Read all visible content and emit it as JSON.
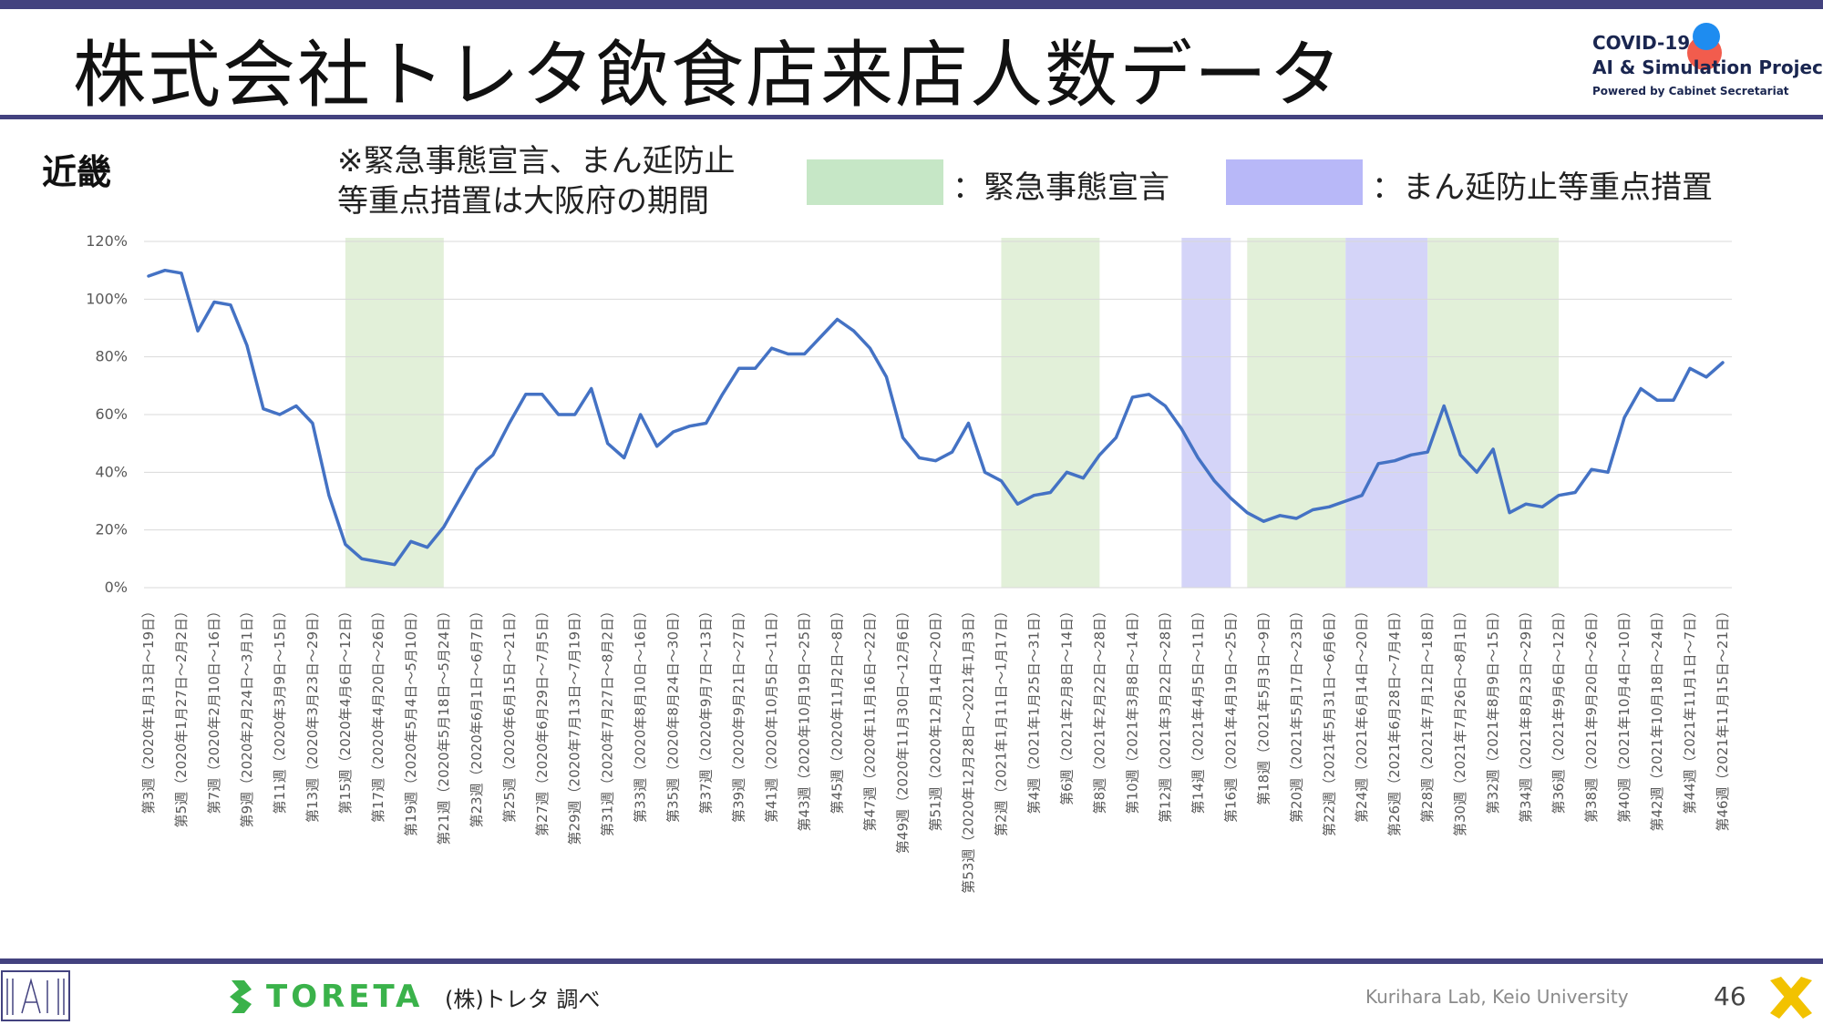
{
  "header": {
    "title": "株式会社トレタ飲食店来店人数データ",
    "logo": {
      "line1": "COVID-19",
      "line2": "AI & Simulation Project",
      "line3": "Powered by Cabinet Secretariat"
    }
  },
  "region": "近畿",
  "note": {
    "line1": "※緊急事態宣言、まん延防止",
    "line2": "等重点措置は大阪府の期間"
  },
  "legend": [
    {
      "label": "：緊急事態宣言",
      "color": "#c6e7c6"
    },
    {
      "label": "：まん延防止等重点措置",
      "color": "#b8b8f8"
    }
  ],
  "colors": {
    "line": "#4472c4",
    "emergency": "#e2f0d9",
    "priority": "#d4d4f8",
    "accent_bar": "#43427f"
  },
  "chart_data": {
    "type": "line",
    "ylim": [
      0,
      120
    ],
    "yticks": [
      "0%",
      "20%",
      "40%",
      "60%",
      "80%",
      "100%",
      "120%"
    ],
    "y_unit": "%",
    "grid": true,
    "x_tick_labels": [
      "第3週（2020年1月13日～19日）",
      "第5週（2020年1月27日～2月2日）",
      "第7週（2020年2月10日～16日）",
      "第9週（2020年2月24日～3月1日）",
      "第11週（2020年3月9日～15日）",
      "第13週（2020年3月23日～29日）",
      "第15週（2020年4月6日～12日）",
      "第17週（2020年4月20日～26日）",
      "第19週（2020年5月4日～5月10日）",
      "第21週（2020年5月18日～5月24日）",
      "第23週（2020年6月1日～6月7日）",
      "第25週（2020年6月15日～21日）",
      "第27週（2020年6月29日～7月5日）",
      "第29週（2020年7月13日～7月19日）",
      "第31週（2020年7月27日～8月2日）",
      "第33週（2020年8月10日～16日）",
      "第35週（2020年8月24日～30日）",
      "第37週（2020年9月7日～13日）",
      "第39週（2020年9月21日～27日）",
      "第41週（2020年10月5日～11日）",
      "第43週（2020年10月19日～25日）",
      "第45週（2020年11月2日～8日）",
      "第47週（2020年11月16日～22日）",
      "第49週（2020年11月30日～12月6日）",
      "第51週（2020年12月14日～20日）",
      "第53週（2020年12月28日～2021年1月3日）",
      "第2週（2021年1月11日～1月17日）",
      "第4週（2021年1月25日～31日）",
      "第6週（2021年2月8日～14日）",
      "第8週（2021年2月22日～28日）",
      "第10週（2021年3月8日～14日）",
      "第12週（2021年3月22日～28日）",
      "第14週（2021年4月5日～11日）",
      "第16週（2021年4月19日～25日）",
      "第18週（2021年5月3日～9日）",
      "第20週（2021年5月17日～23日）",
      "第22週（2021年5月31日～6月6日）",
      "第24週（2021年6月14日～20日）",
      "第26週（2021年6月28日～7月4日）",
      "第28週（2021年7月12日～18日）",
      "第30週（2021年7月26日～8月1日）",
      "第32週（2021年8月9日～15日）",
      "第34週（2021年8月23日～29日）",
      "第36週（2021年9月6日～12日）",
      "第38週（2021年9月20日～26日）",
      "第40週（2021年10月4日～10日）",
      "第42週（2021年10月18日～24日）",
      "第44週（2021年11月1日～7日）",
      "第46週（2021年11月15日～21日）"
    ],
    "series": [
      {
        "values": [
          108,
          110,
          109,
          89,
          99,
          98,
          84,
          62,
          60,
          63,
          57,
          32,
          15,
          10,
          9,
          8,
          16,
          14,
          21,
          31,
          41,
          46,
          57,
          67,
          67,
          60,
          60,
          69,
          50,
          45,
          60,
          49,
          54,
          56,
          57,
          67,
          76,
          76,
          83,
          81,
          81,
          87,
          93,
          89,
          83,
          73,
          52,
          45,
          44,
          47,
          57,
          40,
          37,
          29,
          32,
          33,
          40,
          38,
          46,
          52,
          66,
          67,
          63,
          55,
          45,
          37,
          31,
          26,
          23,
          25,
          24,
          27,
          28,
          30,
          32,
          43,
          44,
          46,
          47,
          63,
          46,
          40,
          48,
          26,
          29,
          28,
          32,
          33,
          41,
          40,
          59,
          69,
          65,
          65,
          76,
          73,
          78
        ]
      }
    ],
    "shaded_periods": [
      {
        "type": "emergency",
        "start": 12,
        "end": 18
      },
      {
        "type": "emergency",
        "start": 52,
        "end": 58
      },
      {
        "type": "priority",
        "start": 63,
        "end": 66
      },
      {
        "type": "emergency",
        "start": 67,
        "end": 73
      },
      {
        "type": "priority",
        "start": 73,
        "end": 78
      },
      {
        "type": "emergency",
        "start": 78,
        "end": 86
      }
    ]
  },
  "footer": {
    "brand": "TORETA",
    "source": "(株)トレタ 調べ",
    "lab": "Kurihara Lab, Keio University",
    "page": "46"
  }
}
